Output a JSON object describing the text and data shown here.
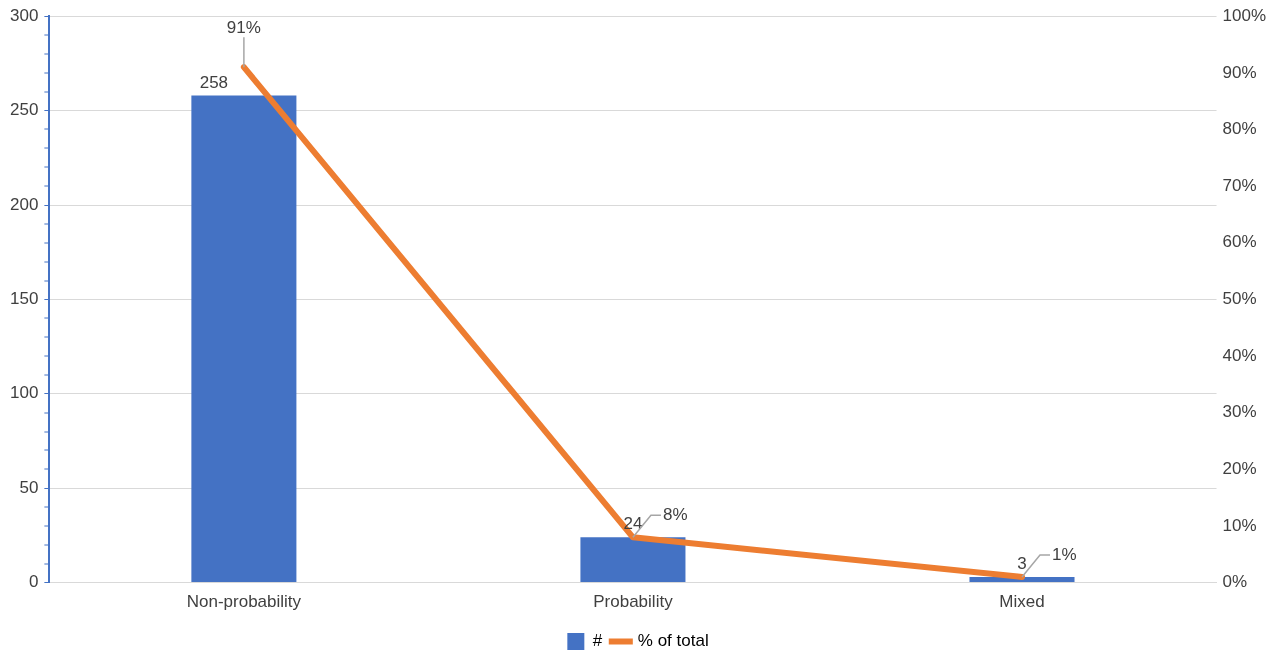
{
  "chart_data": {
    "type": "bar",
    "categories": [
      "Non-probability",
      "Probability",
      "Mixed"
    ],
    "series": [
      {
        "name": "#",
        "color": "#4472c4",
        "values": [
          258,
          24,
          3
        ],
        "value_labels": [
          "258",
          "24",
          "3"
        ]
      },
      {
        "name": "% of total",
        "type": "line",
        "axis": "y2",
        "color": "#ed7d31",
        "values": [
          91,
          8,
          1
        ],
        "value_labels": [
          "91%",
          "8%",
          "1%"
        ]
      }
    ],
    "ylim": [
      0,
      300
    ],
    "yticks": [
      0,
      {
        "value": 10,
        "label": null
      },
      {
        "value": 20,
        "label": null
      },
      {
        "value": 30,
        "label": null
      },
      {
        "value": 40,
        "label": null
      },
      50,
      {
        "value": 60,
        "label": null
      },
      {
        "value": 70,
        "label": null
      },
      {
        "value": 80,
        "label": null
      },
      {
        "value": 90,
        "label": null
      },
      100,
      {
        "value": 110,
        "label": null
      },
      {
        "value": 120,
        "label": null
      },
      {
        "value": 130,
        "label": null
      },
      {
        "value": 140,
        "label": null
      },
      150,
      {
        "value": 160,
        "label": null
      },
      {
        "value": 170,
        "label": null
      },
      {
        "value": 180,
        "label": null
      },
      {
        "value": 190,
        "label": null
      },
      200,
      {
        "value": 210,
        "label": null
      },
      {
        "value": 220,
        "label": null
      },
      {
        "value": 230,
        "label": null
      },
      {
        "value": 240,
        "label": null
      },
      250,
      {
        "value": 260,
        "label": null
      },
      {
        "value": 270,
        "label": null
      },
      {
        "value": 280,
        "label": null
      },
      {
        "value": 290,
        "label": null
      },
      300
    ],
    "y2lim": [
      0,
      100
    ],
    "y2ticks": [
      {
        "value": 0,
        "label": "0%"
      },
      {
        "value": 10,
        "label": "10%"
      },
      {
        "value": 20,
        "label": "20%"
      },
      {
        "value": 30,
        "label": "30%"
      },
      {
        "value": 40,
        "label": "40%"
      },
      {
        "value": 50,
        "label": "50%"
      },
      {
        "value": 60,
        "label": "60%"
      },
      {
        "value": 70,
        "label": "70%"
      },
      {
        "value": 80,
        "label": "80%"
      },
      {
        "value": 90,
        "label": "90%"
      },
      {
        "value": 100,
        "label": "100%"
      }
    ],
    "grid": "y",
    "legend": "bottom",
    "marker": "none",
    "line_style": "solid"
  }
}
